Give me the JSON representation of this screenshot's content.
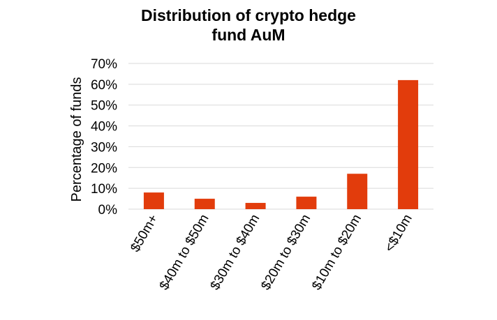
{
  "chart_data": {
    "type": "bar",
    "title_lines": [
      "Distribution of crypto hedge",
      "fund AuM"
    ],
    "xlabel": "",
    "ylabel": "Percentage of funds",
    "categories": [
      "$50m+",
      "$40m to $50m",
      "$30m to $40m",
      "$20m to $30m",
      "$10m to $20m",
      "<$10m"
    ],
    "values": [
      8,
      5,
      3,
      6,
      17,
      62
    ],
    "ylim": [
      0,
      70
    ],
    "yticks": [
      "0%",
      "10%",
      "20%",
      "30%",
      "40%",
      "50%",
      "60%",
      "70%"
    ],
    "grid": true,
    "legend": "none",
    "bar_color": "#e23c0c",
    "grid_color": "#d9d9d9"
  }
}
